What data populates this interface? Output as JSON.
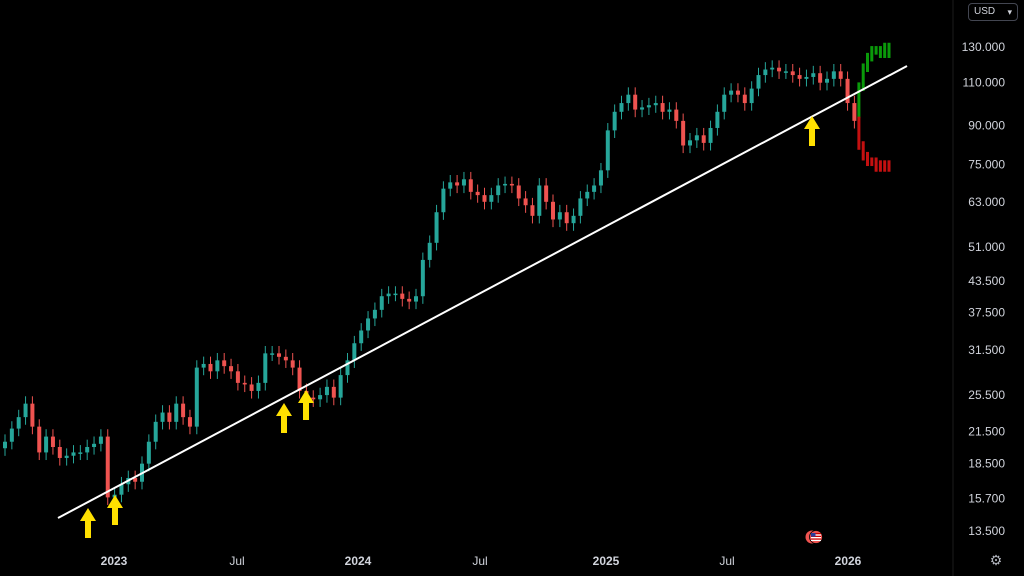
{
  "currency": {
    "label": "USD"
  },
  "icons": {
    "currency_chevron": "chevron-down-icon",
    "settings": "gear-icon",
    "flag": "us-flag-icon"
  },
  "colors": {
    "up": "#26a69a",
    "down": "#ef5350",
    "projection_up": "#0a9a0a",
    "projection_down": "#c41010",
    "trendline": "#ffffff",
    "arrow": "#ffe000"
  },
  "chart_data": {
    "type": "candlestick",
    "scale": "log",
    "y_ticks": [
      "130.000",
      "110.000",
      "90.000",
      "75.000",
      "63.000",
      "51.000",
      "43.500",
      "37.500",
      "31.500",
      "25.500",
      "21.500",
      "18.500",
      "15.700",
      "13.500"
    ],
    "x_ticks": [
      {
        "label": "2023",
        "bold": true
      },
      {
        "label": "Jul",
        "bold": false
      },
      {
        "label": "2024",
        "bold": true
      },
      {
        "label": "Jul",
        "bold": false
      },
      {
        "label": "2025",
        "bold": true
      },
      {
        "label": "Jul",
        "bold": false
      },
      {
        "label": "2026",
        "bold": true
      }
    ],
    "candles_close": [
      20.5,
      21.8,
      23,
      24.5,
      22,
      19.5,
      21,
      20,
      19,
      19.2,
      19.5,
      19.5,
      20,
      20.3,
      21,
      15.8,
      16,
      16.8,
      17.3,
      17,
      18.5,
      20.5,
      22.5,
      23.5,
      22.5,
      24.5,
      23,
      22,
      29,
      29.5,
      28.5,
      30,
      29.2,
      28.5,
      27,
      26.8,
      26,
      27,
      31,
      31,
      30.5,
      30,
      29,
      26,
      25.2,
      25,
      25.5,
      26.5,
      25.2,
      28,
      30,
      32.5,
      34.5,
      36.5,
      38,
      40.5,
      41,
      41,
      40,
      39.5,
      40.5,
      48,
      52,
      60,
      67,
      69,
      68,
      70,
      66,
      65,
      63,
      65,
      68,
      68.5,
      68,
      64,
      62,
      59,
      68,
      63,
      58,
      60,
      57,
      59,
      64,
      66,
      68,
      73,
      88,
      96,
      100,
      104,
      97,
      98,
      99,
      100,
      96,
      97,
      92,
      82,
      84,
      86,
      83,
      89,
      96,
      104,
      106,
      104,
      100,
      107,
      114,
      117,
      118,
      116,
      116,
      114,
      112,
      113,
      115,
      110,
      112,
      116,
      112,
      100,
      92
    ],
    "projection_green": [
      108,
      118,
      124,
      128,
      128,
      126,
      130,
      126
    ],
    "projection_red": [
      82,
      78,
      76,
      76,
      74,
      75,
      74,
      75
    ]
  }
}
